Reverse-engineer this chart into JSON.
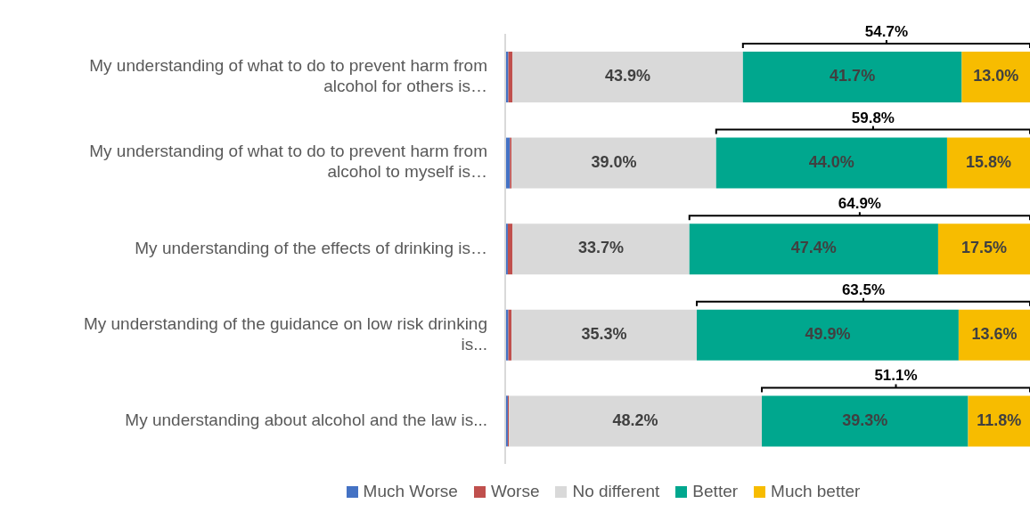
{
  "chart_data": {
    "type": "bar",
    "orientation": "horizontal",
    "stacked": true,
    "legend": "bottom",
    "grid": false,
    "categories": [
      "My understanding of what to do to prevent harm from alcohol for others is…",
      "My understanding of what to do to prevent harm from alcohol to myself is…",
      "My understanding of the effects of drinking is…",
      "My understanding of the guidance on low risk drinking is...",
      "My understanding about alcohol and the law is..."
    ],
    "series": [
      {
        "name": "Much Worse",
        "color": "#4472c4",
        "values": [
          0.6,
          0.9,
          0.5,
          0.6,
          0.5
        ],
        "value_labels": [
          null,
          null,
          null,
          null,
          null
        ]
      },
      {
        "name": "Worse",
        "color": "#c0504d",
        "values": [
          0.8,
          0.3,
          0.9,
          0.6,
          0.2
        ],
        "value_labels": [
          null,
          null,
          null,
          null,
          null
        ]
      },
      {
        "name": "No different",
        "color": "#d9d9d9",
        "values": [
          43.9,
          39.0,
          33.7,
          35.3,
          48.2
        ],
        "value_labels": [
          "43.9%",
          "39.0%",
          "33.7%",
          "35.3%",
          "48.2%"
        ]
      },
      {
        "name": "Better",
        "color": "#00a78e",
        "values": [
          41.7,
          44.0,
          47.4,
          49.9,
          39.3
        ],
        "value_labels": [
          "41.7%",
          "44.0%",
          "47.4%",
          "49.9%",
          "39.3%"
        ]
      },
      {
        "name": "Much better",
        "color": "#f7bc00",
        "values": [
          13.0,
          15.8,
          17.5,
          13.6,
          11.8
        ],
        "value_labels": [
          "13.0%",
          "15.8%",
          "17.5%",
          "13.6%",
          "11.8%"
        ]
      }
    ],
    "annotations": [
      "54.7%",
      "59.8%",
      "64.9%",
      "63.5%",
      "51.1%"
    ]
  }
}
